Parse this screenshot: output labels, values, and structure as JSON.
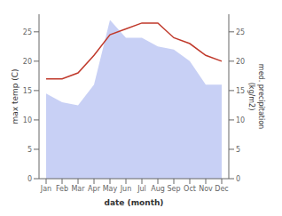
{
  "chart_data": {
    "type": "line",
    "categories": [
      "Jan",
      "Feb",
      "Mar",
      "Apr",
      "May",
      "Jun",
      "Jul",
      "Aug",
      "Sep",
      "Oct",
      "Nov",
      "Dec"
    ],
    "series": [
      {
        "type": "area",
        "color": "#c8d0f5",
        "values": [
          14.5,
          13.0,
          12.5,
          16.0,
          27.0,
          24.0,
          24.0,
          22.5,
          22.0,
          20.0,
          16.0,
          16.0
        ]
      },
      {
        "type": "line",
        "color": "#c0392b",
        "values": [
          17.0,
          17.0,
          18.0,
          21.0,
          24.5,
          25.5,
          26.5,
          26.5,
          24.0,
          23.0,
          21.0,
          20.0
        ]
      }
    ],
    "xlabel": "date (month)",
    "ylabel": "max temp (C)",
    "y2label": "med. precipitation\n(kg/m2)",
    "ylim": [
      0,
      28
    ],
    "yticks": [
      0,
      5,
      10,
      15,
      20,
      25
    ],
    "y2lim": [
      0,
      28
    ],
    "y2ticks": [
      0,
      5,
      10,
      15,
      20,
      25
    ],
    "grid": false
  }
}
